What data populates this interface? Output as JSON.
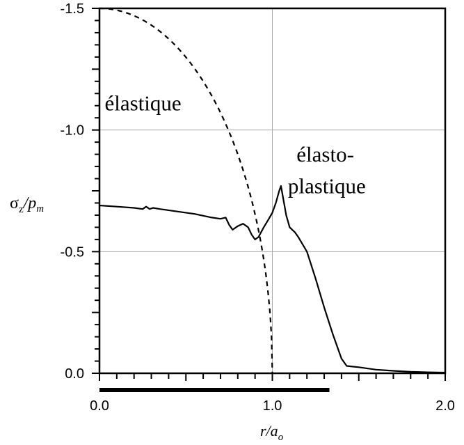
{
  "chart_data": {
    "type": "line",
    "xlabel": {
      "main": "r/a",
      "sub": "o"
    },
    "ylabel": {
      "main": "σ",
      "sub": "z",
      "rest": "/p",
      "sub2": "m"
    },
    "xlim": [
      0,
      2.0
    ],
    "ylim": [
      0,
      -1.5
    ],
    "x_ticks": [
      {
        "value": 0.0,
        "label": "0.0"
      },
      {
        "value": 1.0,
        "label": "1.0"
      },
      {
        "value": 2.0,
        "label": "2.0"
      }
    ],
    "y_ticks": [
      {
        "value": 0.0,
        "label": "0.0"
      },
      {
        "value": -0.5,
        "label": "-0.5"
      },
      {
        "value": -1.0,
        "label": "-1.0"
      },
      {
        "value": -1.5,
        "label": "-1.5"
      }
    ],
    "grid": true,
    "contact_zone": [
      0,
      1.33
    ],
    "annotations": [
      {
        "text": "élastique",
        "x": 0.03,
        "y": -1.08
      },
      {
        "text": "élasto-",
        "x": 1.14,
        "y": -0.87
      },
      {
        "text": "plastique",
        "x": 1.09,
        "y": -0.74
      }
    ],
    "series": [
      {
        "style": "dashed",
        "function": "-1.5*sqrt(1-x^2)",
        "domain": [
          0,
          1.0
        ]
      },
      {
        "style": "solid",
        "x": [
          0,
          0.1,
          0.2,
          0.25,
          0.27,
          0.29,
          0.31,
          0.35,
          0.45,
          0.55,
          0.65,
          0.7,
          0.73,
          0.75,
          0.77,
          0.8,
          0.83,
          0.86,
          0.88,
          0.9,
          0.92,
          0.95,
          0.98,
          1.0,
          1.02,
          1.04,
          1.05,
          1.06,
          1.08,
          1.1,
          1.13,
          1.15,
          1.2,
          1.25,
          1.3,
          1.35,
          1.4,
          1.43,
          1.5,
          1.6,
          1.7,
          1.8,
          1.9,
          2.0
        ],
        "y": [
          -0.69,
          -0.685,
          -0.68,
          -0.675,
          -0.685,
          -0.675,
          -0.68,
          -0.675,
          -0.665,
          -0.655,
          -0.64,
          -0.635,
          -0.64,
          -0.61,
          -0.59,
          -0.605,
          -0.615,
          -0.6,
          -0.57,
          -0.55,
          -0.56,
          -0.6,
          -0.635,
          -0.66,
          -0.7,
          -0.75,
          -0.77,
          -0.73,
          -0.65,
          -0.6,
          -0.58,
          -0.56,
          -0.5,
          -0.39,
          -0.27,
          -0.16,
          -0.06,
          -0.03,
          -0.025,
          -0.015,
          -0.01,
          -0.006,
          -0.004,
          -0.003
        ]
      }
    ]
  }
}
